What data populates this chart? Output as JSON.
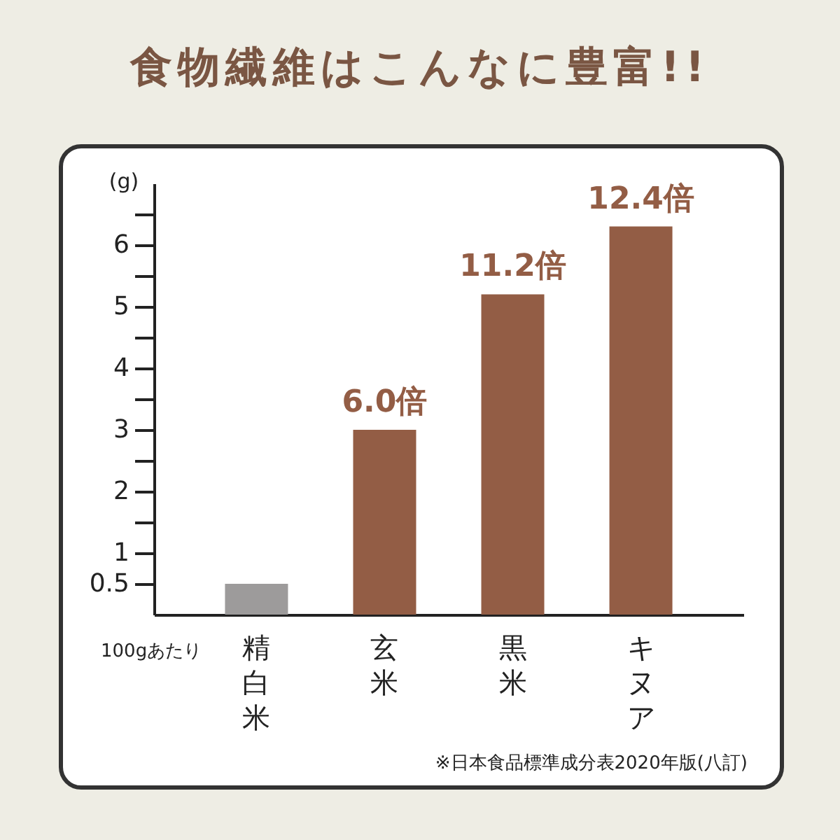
{
  "chart_data": {
    "type": "bar",
    "title": "食物繊維はこんなに豊富!!",
    "ylabel": "(g)",
    "annotations": [
      "100gあたり",
      "※日本食品標準成分表2020年版(八訂)",
      {
        "text": "6.0倍",
        "x": "玄米",
        "y": 3.0
      },
      {
        "text": "11.2倍",
        "x": "黒米",
        "y": 5.2
      },
      {
        "text": "12.4倍",
        "x": "キヌア",
        "y": 6.3
      }
    ],
    "categories": [
      "精白米",
      "玄米",
      "黒米",
      "キヌア"
    ],
    "values": [
      0.5,
      3.0,
      5.2,
      6.3
    ],
    "colors": [
      "#9d9b9b",
      "#935d45",
      "#935d45",
      "#935d45"
    ],
    "ylim": [
      0,
      7
    ],
    "yticks": [
      0.5,
      1,
      {
        "value": 1.5,
        "label": null
      },
      2,
      {
        "value": 2.5,
        "label": null
      },
      3,
      {
        "value": 3.5,
        "label": null
      },
      4,
      {
        "value": 4.5,
        "label": null
      },
      5,
      {
        "value": 5.5,
        "label": null
      },
      6,
      {
        "value": 6.5,
        "label": null
      }
    ]
  }
}
